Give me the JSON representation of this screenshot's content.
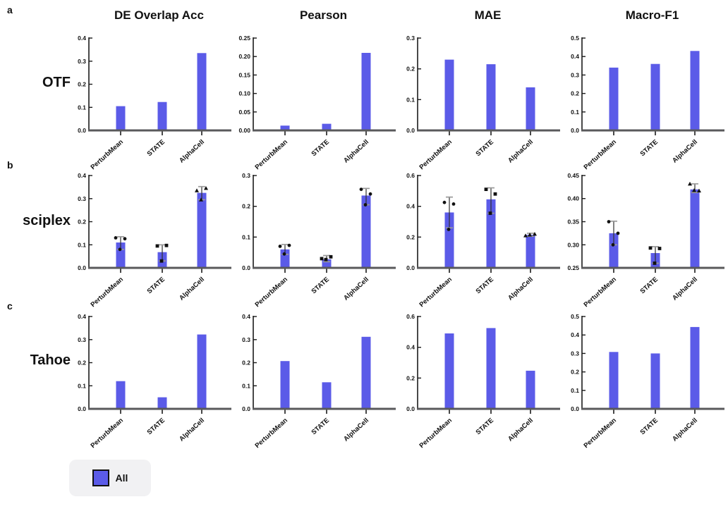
{
  "figure": {
    "panels": [
      {
        "letter": "a",
        "row_label": "OTF"
      },
      {
        "letter": "b",
        "row_label": "sciplex"
      },
      {
        "letter": "c",
        "row_label": "Tahoe"
      }
    ],
    "col_titles": [
      "DE Overlap Acc",
      "Pearson",
      "MAE",
      "Macro-F1"
    ],
    "legend": {
      "label": "All",
      "swatch_color": "#5b5be8"
    },
    "colors": {
      "bar": "#5b5be8",
      "axis": "#1a1a1a",
      "baseline": "#59595b",
      "point": "#111111",
      "error_stem": "#2f2f2f",
      "error_cap": "#9a9a9a"
    }
  },
  "chart_data": [
    {
      "dataset": "OTF",
      "metric": "DE Overlap Acc",
      "type": "bar",
      "categories": [
        "PerturbMean",
        "STATE",
        "AlphaCell"
      ],
      "values": [
        0.105,
        0.123,
        0.335
      ],
      "ylim": [
        0,
        0.4
      ],
      "yticks": [
        "0.0",
        "0.1",
        "0.2",
        "0.3",
        "0.4"
      ]
    },
    {
      "dataset": "OTF",
      "metric": "Pearson",
      "type": "bar",
      "categories": [
        "PerturbMean",
        "STATE",
        "AlphaCell"
      ],
      "values": [
        0.013,
        0.018,
        0.21
      ],
      "ylim": [
        0,
        0.25
      ],
      "yticks": [
        "0.00",
        "0.05",
        "0.10",
        "0.15",
        "0.20",
        "0.25"
      ]
    },
    {
      "dataset": "OTF",
      "metric": "MAE",
      "type": "bar",
      "categories": [
        "PerturbMean",
        "STATE",
        "AlphaCell"
      ],
      "values": [
        0.23,
        0.215,
        0.14
      ],
      "ylim": [
        0,
        0.3
      ],
      "yticks": [
        "0.0",
        "0.1",
        "0.2",
        "0.3"
      ]
    },
    {
      "dataset": "OTF",
      "metric": "Macro-F1",
      "type": "bar",
      "categories": [
        "PerturbMean",
        "STATE",
        "AlphaCell"
      ],
      "values": [
        0.34,
        0.36,
        0.43
      ],
      "ylim": [
        0,
        0.5
      ],
      "yticks": [
        "0.0",
        "0.1",
        "0.2",
        "0.3",
        "0.4",
        "0.5"
      ]
    },
    {
      "dataset": "sciplex",
      "metric": "DE Overlap Acc",
      "type": "bar",
      "categories": [
        "PerturbMean",
        "STATE",
        "AlphaCell"
      ],
      "values": [
        0.11,
        0.068,
        0.325
      ],
      "ylim": [
        0,
        0.4
      ],
      "yticks": [
        "0.0",
        "0.1",
        "0.2",
        "0.3",
        "0.4"
      ],
      "errors": [
        [
          0.08,
          0.135
        ],
        [
          0.03,
          0.1
        ],
        [
          0.295,
          0.352
        ]
      ],
      "points": [
        [
          0.13,
          0.126,
          0.08
        ],
        [
          0.095,
          0.097,
          0.03
        ],
        [
          0.335,
          0.345,
          0.295
        ]
      ],
      "markers": [
        "circle",
        "square",
        "triangle"
      ]
    },
    {
      "dataset": "sciplex",
      "metric": "Pearson",
      "type": "bar",
      "categories": [
        "PerturbMean",
        "STATE",
        "AlphaCell"
      ],
      "values": [
        0.06,
        0.028,
        0.235
      ],
      "ylim": [
        0,
        0.3
      ],
      "yticks": [
        "0.0",
        "0.1",
        "0.2",
        "0.3"
      ],
      "errors": [
        [
          0.044,
          0.076
        ],
        [
          0.02,
          0.04
        ],
        [
          0.205,
          0.258
        ]
      ],
      "points": [
        [
          0.07,
          0.073,
          0.045
        ],
        [
          0.03,
          0.036,
          0.027
        ],
        [
          0.255,
          0.24,
          0.205
        ]
      ],
      "markers": [
        "circle",
        "square",
        "circle"
      ]
    },
    {
      "dataset": "sciplex",
      "metric": "MAE",
      "type": "bar",
      "categories": [
        "PerturbMean",
        "STATE",
        "AlphaCell"
      ],
      "values": [
        0.36,
        0.445,
        0.215
      ],
      "ylim": [
        0,
        0.6
      ],
      "yticks": [
        "0.0",
        "0.2",
        "0.4",
        "0.6"
      ],
      "errors": [
        [
          0.26,
          0.46
        ],
        [
          0.355,
          0.52
        ],
        [
          0.205,
          0.225
        ]
      ],
      "points": [
        [
          0.425,
          0.415,
          0.25
        ],
        [
          0.51,
          0.48,
          0.355
        ],
        [
          0.21,
          0.22,
          0.215
        ]
      ],
      "markers": [
        "circle",
        "square",
        "triangle"
      ]
    },
    {
      "dataset": "sciplex",
      "metric": "Macro-F1",
      "type": "bar",
      "categories": [
        "PerturbMean",
        "STATE",
        "AlphaCell"
      ],
      "values": [
        0.325,
        0.282,
        0.42
      ],
      "ylim": [
        0.25,
        0.45
      ],
      "yticks": [
        "0.25",
        "0.30",
        "0.35",
        "0.40",
        "0.45"
      ],
      "errors": [
        [
          0.3,
          0.351
        ],
        [
          0.26,
          0.296
        ],
        [
          0.413,
          0.432
        ]
      ],
      "points": [
        [
          0.35,
          0.325,
          0.3
        ],
        [
          0.293,
          0.292,
          0.26
        ],
        [
          0.432,
          0.417,
          0.418
        ]
      ],
      "markers": [
        "circle",
        "square",
        "triangle"
      ]
    },
    {
      "dataset": "Tahoe",
      "metric": "DE Overlap Acc",
      "type": "bar",
      "categories": [
        "PerturbMean",
        "STATE",
        "AlphaCell"
      ],
      "values": [
        0.12,
        0.05,
        0.322
      ],
      "ylim": [
        0,
        0.4
      ],
      "yticks": [
        "0.0",
        "0.1",
        "0.2",
        "0.3",
        "0.4"
      ]
    },
    {
      "dataset": "Tahoe",
      "metric": "Pearson",
      "type": "bar",
      "categories": [
        "PerturbMean",
        "STATE",
        "AlphaCell"
      ],
      "values": [
        0.207,
        0.115,
        0.312
      ],
      "ylim": [
        0,
        0.4
      ],
      "yticks": [
        "0.0",
        "0.1",
        "0.2",
        "0.3",
        "0.4"
      ]
    },
    {
      "dataset": "Tahoe",
      "metric": "MAE",
      "type": "bar",
      "categories": [
        "PerturbMean",
        "STATE",
        "AlphaCell"
      ],
      "values": [
        0.49,
        0.525,
        0.248
      ],
      "ylim": [
        0,
        0.6
      ],
      "yticks": [
        "0.0",
        "0.2",
        "0.4",
        "0.6"
      ]
    },
    {
      "dataset": "Tahoe",
      "metric": "Macro-F1",
      "type": "bar",
      "categories": [
        "PerturbMean",
        "STATE",
        "AlphaCell"
      ],
      "values": [
        0.308,
        0.3,
        0.443
      ],
      "ylim": [
        0,
        0.5
      ],
      "yticks": [
        "0.0",
        "0.1",
        "0.2",
        "0.3",
        "0.4",
        "0.5"
      ]
    }
  ]
}
